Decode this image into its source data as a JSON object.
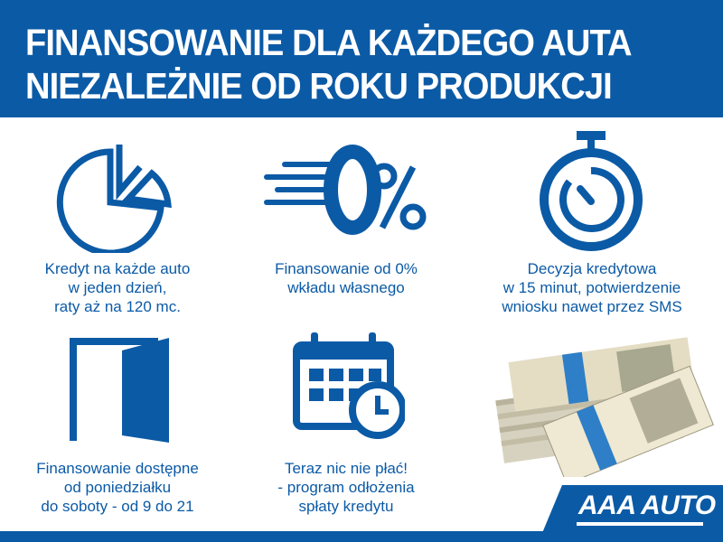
{
  "header": {
    "line1": "FINANSOWANIE DLA KAŻDEGO AUTA",
    "line2": "NIEZALEŻNIE OD ROKU PRODUKCJI"
  },
  "features": [
    {
      "icon": "pie-chart-icon",
      "lines": [
        "Kredyt na każde auto",
        "w jeden dzień,",
        "raty aż na 120 mc."
      ]
    },
    {
      "icon": "zero-percent-icon",
      "lines": [
        "Finansowanie od 0%",
        "wkładu własnego"
      ]
    },
    {
      "icon": "stopwatch-icon",
      "lines": [
        "Decyzja kredytowa",
        "w 15 minut, potwierdzenie",
        "wniosku nawet przez SMS"
      ]
    },
    {
      "icon": "open-door-icon",
      "lines": [
        "Finansowanie dostępne",
        "od poniedziałku",
        "do soboty - od 9 do 21"
      ]
    },
    {
      "icon": "calendar-clock-icon",
      "lines": [
        "Teraz nic nie płać!",
        "- program odłożenia",
        "spłaty kredytu"
      ]
    },
    {
      "icon": "money-stack-image",
      "lines": []
    }
  ],
  "logo": {
    "text": "AAA AUTO"
  },
  "colors": {
    "brand_blue": "#0b5aa6",
    "white": "#ffffff"
  }
}
